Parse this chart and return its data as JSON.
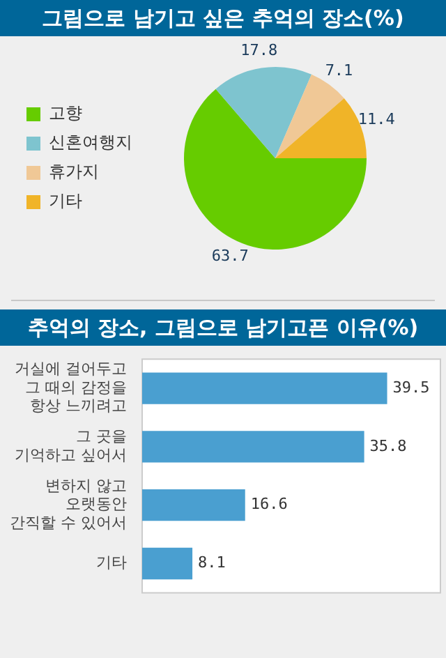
{
  "chart_data": [
    {
      "type": "pie",
      "title": "그림으로 남기고 싶은 추억의 장소(%)",
      "categories": [
        "고향",
        "신혼여행지",
        "휴가지",
        "기타"
      ],
      "values": [
        63.7,
        17.8,
        7.1,
        11.4
      ],
      "colors": [
        "#66cc00",
        "#7ec4cf",
        "#f0c896",
        "#f0b428"
      ],
      "legend": "left",
      "data_labels": true
    },
    {
      "type": "bar",
      "orientation": "horizontal",
      "title": "추억의 장소, 그림으로 남기고픈 이유(%)",
      "categories": [
        "거실에 걸어두고\n그 때의 감정을\n항상 느끼려고",
        "그 곳을\n기억하고 싶어서",
        "변하지 않고\n오랫동안\n간직할 수 있어서",
        "기타"
      ],
      "values": [
        39.5,
        35.8,
        16.6,
        8.1
      ],
      "color": "#4a9fd0",
      "data_labels": true
    }
  ]
}
